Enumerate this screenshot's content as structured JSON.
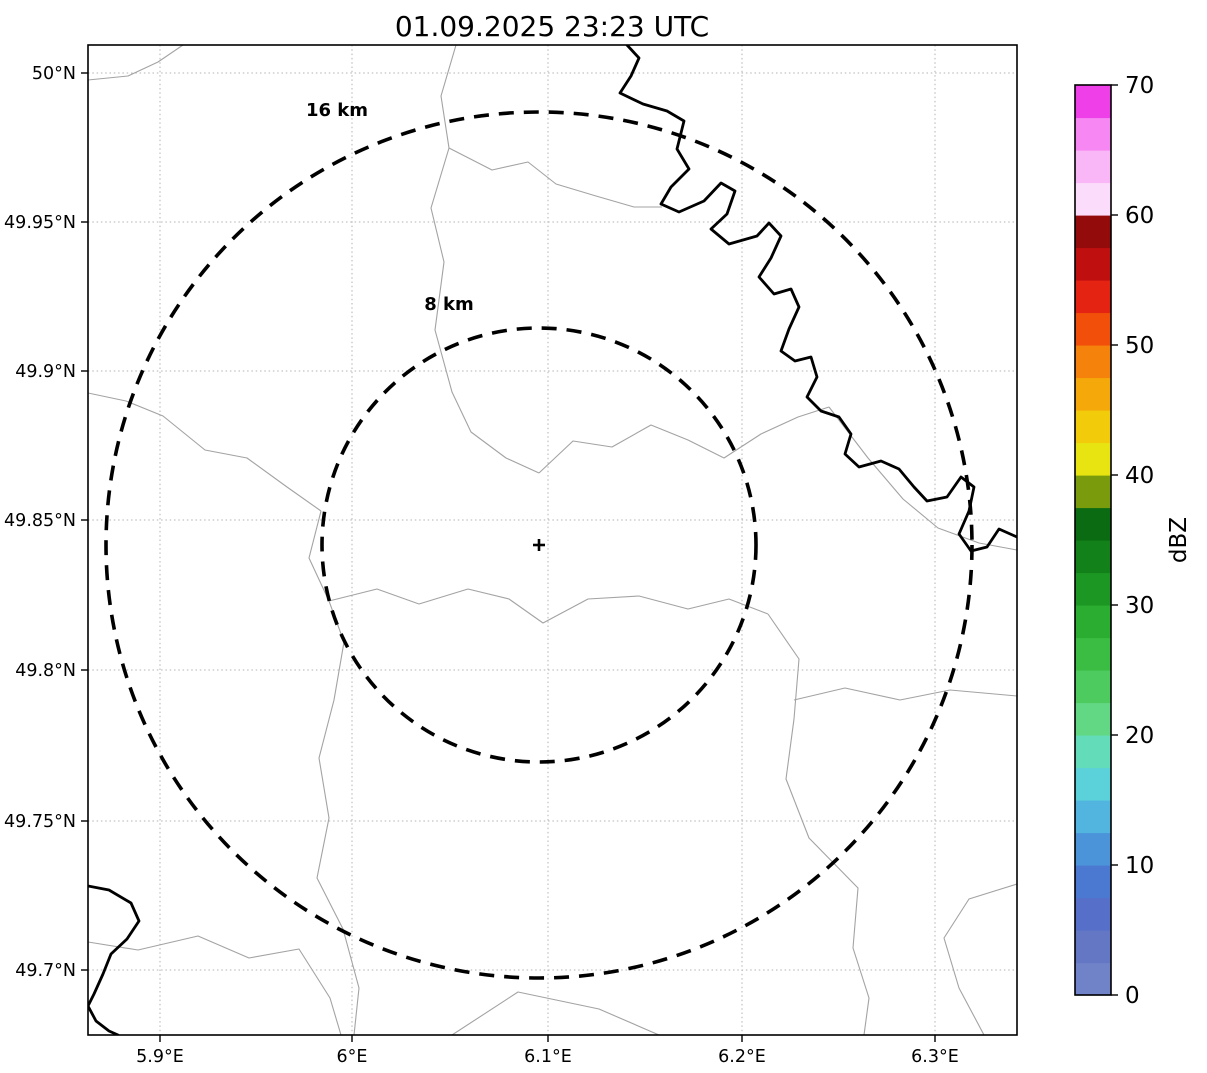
{
  "title": "01.09.2025 23:23 UTC",
  "axes": {
    "lat_ticks": [
      "50°N",
      "49.95°N",
      "49.9°N",
      "49.85°N",
      "49.8°N",
      "49.75°N",
      "49.7°N"
    ],
    "lon_ticks": [
      "5.9°E",
      "6°E",
      "6.1°E",
      "6.2°E",
      "6.3°E"
    ]
  },
  "rings": [
    {
      "label": "16 km"
    },
    {
      "label": "8 km"
    }
  ],
  "center_marker": "+",
  "colorbar": {
    "label": "dBZ",
    "min": 0,
    "max": 70,
    "ticks_bottom_to_top": [
      "0",
      "10",
      "20",
      "30",
      "40",
      "50",
      "60",
      "70"
    ],
    "colors_bottom_to_top": [
      "#7082c8",
      "#6377c5",
      "#566fc9",
      "#4b78d1",
      "#4b94da",
      "#52b5e0",
      "#5bd1da",
      "#63ddb9",
      "#62d884",
      "#4ecb5f",
      "#3abd42",
      "#2aad30",
      "#1d9724",
      "#12811a",
      "#0a6b12",
      "#7a9c0c",
      "#e8e412",
      "#f2cb0a",
      "#f5a80a",
      "#f5820a",
      "#f2500a",
      "#e42312",
      "#c00f0f",
      "#940b0b",
      "#fcdcfb",
      "#f9b7f7",
      "#f787f3",
      "#ef3fe8"
    ]
  },
  "style": {
    "boundary_color": "#a3a3a3",
    "river_color": "#000000",
    "ring_color": "#000000"
  }
}
